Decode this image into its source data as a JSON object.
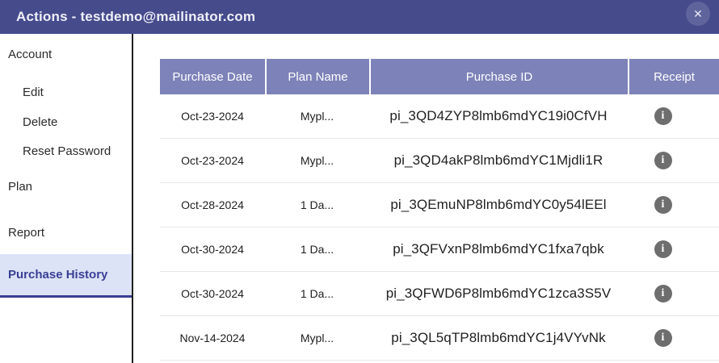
{
  "window": {
    "title": "Actions - testdemo@mailinator.com",
    "close_glyph": "✕"
  },
  "colors": {
    "titlebar_bg": "#464b8c",
    "table_header_bg": "#7d82b8",
    "selected_item_bg": "#dce3f6",
    "selected_item_text": "#3a3f94",
    "receipt_icon_bg": "#6e6e6e",
    "row_divider": "#e6e6e6"
  },
  "sidebar": {
    "items": [
      {
        "label": "Account",
        "selected": false
      },
      {
        "label": "Edit",
        "selected": false
      },
      {
        "label": "Delete",
        "selected": false
      },
      {
        "label": "Reset Password",
        "selected": false
      },
      {
        "label": "Plan",
        "selected": false
      },
      {
        "label": "Report",
        "selected": false
      },
      {
        "label": "Purchase History",
        "selected": true
      }
    ]
  },
  "table": {
    "columns": [
      "Purchase Date",
      "Plan Name",
      "Purchase ID",
      "Receipt"
    ],
    "rows": [
      {
        "purchase_date": "Oct-23-2024",
        "plan_name": "Mypl...",
        "purchase_id": "pi_3QD4ZYP8lmb6mdYC19i0CfVH",
        "receipt_icon": "info-icon",
        "info_glyph": "i"
      },
      {
        "purchase_date": "Oct-23-2024",
        "plan_name": "Mypl...",
        "purchase_id": "pi_3QD4akP8lmb6mdYC1Mjdli1R",
        "receipt_icon": "info-icon",
        "info_glyph": "i"
      },
      {
        "purchase_date": "Oct-28-2024",
        "plan_name": "1 Da...",
        "purchase_id": "pi_3QEmuNP8lmb6mdYC0y54lEEl",
        "receipt_icon": "info-icon",
        "info_glyph": "i"
      },
      {
        "purchase_date": "Oct-30-2024",
        "plan_name": "1 Da...",
        "purchase_id": "pi_3QFVxnP8lmb6mdYC1fxa7qbk",
        "receipt_icon": "info-icon",
        "info_glyph": "i"
      },
      {
        "purchase_date": "Oct-30-2024",
        "plan_name": "1 Da...",
        "purchase_id": "pi_3QFWD6P8lmb6mdYC1zca3S5V",
        "receipt_icon": "info-icon",
        "info_glyph": "i"
      },
      {
        "purchase_date": "Nov-14-2024",
        "plan_name": "Mypl...",
        "purchase_id": "pi_3QL5qTP8lmb6mdYC1j4VYvNk",
        "receipt_icon": "info-icon",
        "info_glyph": "i"
      }
    ]
  }
}
